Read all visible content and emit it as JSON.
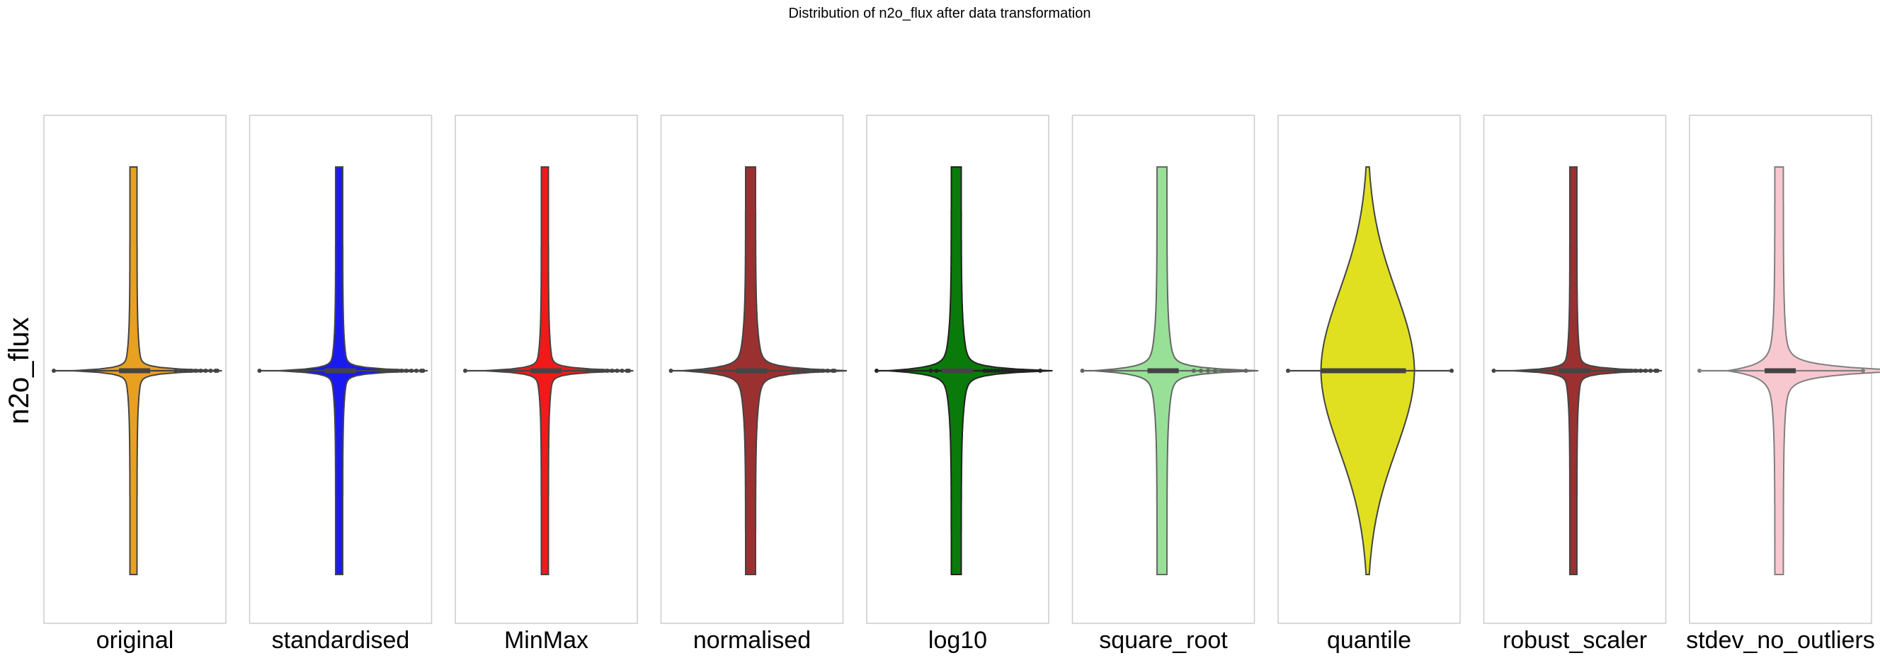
{
  "figure": {
    "title": "Distribution of n2o_flux after data transformation",
    "ylabel": "n2o_flux"
  },
  "chart_data": [
    {
      "type": "violin",
      "xlabel": "original",
      "color": "#e8a020",
      "edge": "#444444",
      "shape": "narrow",
      "outliers": "dense-right",
      "grid": false
    },
    {
      "type": "violin",
      "xlabel": "standardised",
      "color": "#1a1af0",
      "edge": "#444444",
      "shape": "narrow",
      "outliers": "dense-right",
      "grid": false
    },
    {
      "type": "violin",
      "xlabel": "MinMax",
      "color": "#f01a1a",
      "edge": "#444444",
      "shape": "narrow",
      "outliers": "dense-right",
      "grid": false
    },
    {
      "type": "violin",
      "xlabel": "normalised",
      "color": "#9b3030",
      "edge": "#444444",
      "shape": "medium",
      "outliers": "dense-right",
      "grid": false
    },
    {
      "type": "violin",
      "xlabel": "log10",
      "color": "#0a7a0a",
      "edge": "#222222",
      "shape": "medium",
      "outliers": "both",
      "grid": false
    },
    {
      "type": "violin",
      "xlabel": "square_root",
      "color": "#98e098",
      "edge": "#666666",
      "shape": "medium",
      "outliers": "few",
      "grid": false
    },
    {
      "type": "violin",
      "xlabel": "quantile",
      "color": "#e0e020",
      "edge": "#444444",
      "shape": "wide",
      "outliers": "none",
      "grid": false
    },
    {
      "type": "violin",
      "xlabel": "robust_scaler",
      "color": "#9b3030",
      "edge": "#444444",
      "shape": "narrow",
      "outliers": "dense-right",
      "grid": false
    },
    {
      "type": "violin",
      "xlabel": "stdev_no_outliers",
      "color": "#f8c8d0",
      "edge": "#808080",
      "shape": "medium-tail",
      "outliers": "none",
      "grid": false
    }
  ]
}
